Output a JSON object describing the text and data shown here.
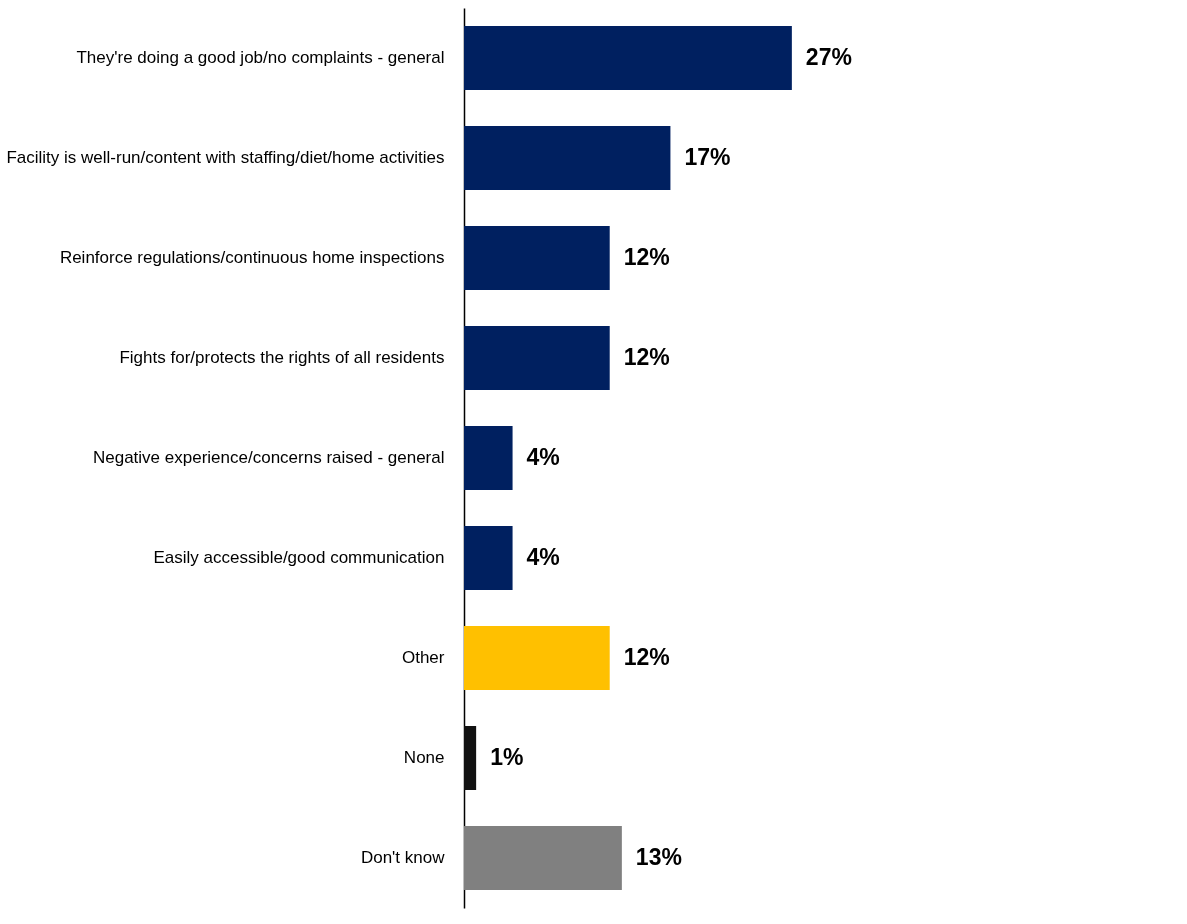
{
  "chart_data": {
    "type": "bar",
    "orientation": "horizontal",
    "categories": [
      "They're doing a good job/no complaints - general",
      "Facility is well-run/content with staffing/diet/home activities",
      "Reinforce regulations/continuous home inspections",
      "Fights for/protects the rights of all residents",
      "Negative experience/concerns raised - general",
      "Easily accessible/good communication",
      "Other",
      "None",
      "Don't know"
    ],
    "values": [
      27,
      17,
      12,
      12,
      4,
      4,
      12,
      1,
      13
    ],
    "colors": [
      "#002060",
      "#002060",
      "#002060",
      "#002060",
      "#002060",
      "#002060",
      "#ffc000",
      "#111111",
      "#808080"
    ],
    "data_labels": true,
    "value_labels": [
      "27%",
      "17%",
      "12%",
      "12%",
      "4%",
      "4%",
      "12%",
      "1%",
      "13%"
    ],
    "grid": false,
    "tick_labels": "y"
  }
}
